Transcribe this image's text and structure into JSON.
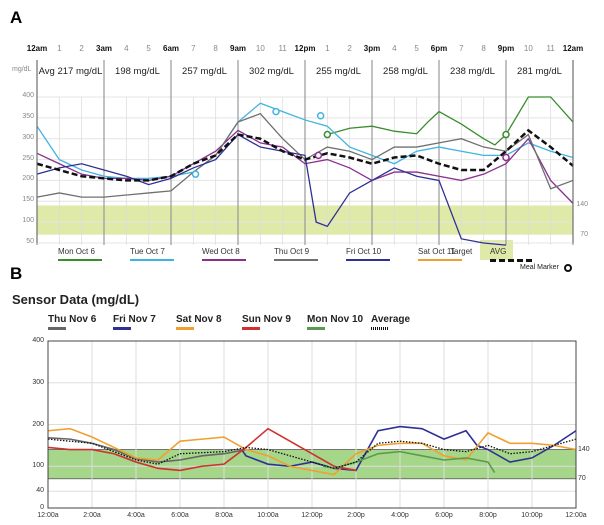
{
  "panels": {
    "a": "A",
    "b": "B"
  },
  "chart_data": [
    {
      "type": "line",
      "hour_labels": [
        "12am",
        "1",
        "2",
        "3am",
        "4",
        "5",
        "6am",
        "7",
        "8",
        "9am",
        "10",
        "11",
        "12pm",
        "1",
        "2",
        "3pm",
        "4",
        "5",
        "6pm",
        "7",
        "8",
        "9pm",
        "10",
        "11",
        "12am"
      ],
      "y_unit": "mg/dL",
      "period_averages": [
        "Avg 217 mg/dL",
        "198 mg/dL",
        "257 mg/dL",
        "302 mg/dL",
        "255 mg/dL",
        "258 mg/dL",
        "238 mg/dL",
        "281 mg/dL"
      ],
      "ylim": [
        50,
        400
      ],
      "yticks": [
        50,
        100,
        150,
        200,
        250,
        300,
        350,
        400
      ],
      "target": {
        "low": 70,
        "high": 140,
        "low_label": "70",
        "high_label": "140",
        "label": "Target",
        "color": "#dfe9a8"
      },
      "meal_marker_label": "Meal Marker",
      "series": [
        {
          "name": "Mon Oct 6",
          "color": "#3a8c2f",
          "dash": false,
          "x": [
            13,
            14,
            15,
            16,
            17,
            17.5,
            18,
            19,
            20,
            20.5,
            21,
            22,
            23,
            24
          ],
          "y": [
            310,
            325,
            330,
            318,
            312,
            340,
            365,
            335,
            300,
            285,
            310,
            400,
            400,
            340
          ]
        },
        {
          "name": "Tue Oct 7",
          "color": "#3fb4e0",
          "dash": false,
          "x": [
            0,
            1,
            2,
            3,
            4,
            5,
            6,
            7,
            8,
            9,
            10,
            11,
            12,
            13,
            14,
            15,
            16,
            17,
            18,
            19,
            20,
            21,
            22,
            23,
            24
          ],
          "y": [
            330,
            250,
            225,
            210,
            205,
            205,
            210,
            220,
            260,
            340,
            385,
            365,
            345,
            330,
            280,
            260,
            240,
            270,
            280,
            270,
            260,
            260,
            290,
            270,
            255
          ]
        },
        {
          "name": "Wed Oct 8",
          "color": "#8b2f8f",
          "dash": false,
          "x": [
            0,
            1,
            2,
            3,
            4,
            5,
            6,
            7,
            8,
            9,
            10,
            11,
            12,
            13,
            14,
            15,
            16,
            17,
            18,
            19,
            20,
            21,
            22,
            23,
            24
          ],
          "y": [
            265,
            240,
            215,
            205,
            205,
            200,
            210,
            240,
            270,
            320,
            290,
            280,
            240,
            250,
            230,
            200,
            220,
            220,
            210,
            200,
            215,
            240,
            300,
            200,
            145
          ]
        },
        {
          "name": "Thu Oct 9",
          "color": "#707070",
          "dash": false,
          "x": [
            0,
            1,
            2,
            3,
            4,
            5,
            6,
            7,
            8,
            9,
            10,
            11,
            12,
            13,
            14,
            15,
            16,
            17,
            18,
            19,
            20,
            21,
            22,
            23,
            24
          ],
          "y": [
            160,
            170,
            160,
            160,
            165,
            170,
            175,
            220,
            260,
            340,
            360,
            300,
            250,
            280,
            270,
            250,
            280,
            280,
            290,
            300,
            280,
            270,
            310,
            180,
            200
          ]
        },
        {
          "name": "Fri Oct 10",
          "color": "#2e3192",
          "dash": false,
          "x": [
            0,
            1,
            2,
            3,
            4,
            5,
            6,
            7,
            8,
            9,
            10,
            11,
            12,
            12.5,
            13,
            14,
            15,
            16,
            17,
            18,
            19,
            20,
            21
          ],
          "y": [
            215,
            230,
            240,
            225,
            210,
            190,
            205,
            230,
            250,
            310,
            280,
            270,
            260,
            100,
            90,
            170,
            200,
            230,
            210,
            200,
            60,
            50,
            45
          ]
        },
        {
          "name": "Sat Oct 11",
          "color": "#f0a030",
          "dash": false,
          "x": [],
          "y": []
        },
        {
          "name": "AVG",
          "color": "#111111",
          "dash": true,
          "x": [
            0,
            1,
            2,
            3,
            4,
            5,
            6,
            7,
            8,
            9,
            10,
            11,
            12,
            13,
            14,
            15,
            16,
            17,
            18,
            19,
            20,
            21,
            22,
            23,
            24
          ],
          "y": [
            240,
            225,
            210,
            205,
            200,
            200,
            210,
            240,
            260,
            310,
            300,
            270,
            250,
            265,
            255,
            240,
            255,
            260,
            240,
            225,
            225,
            270,
            320,
            280,
            235
          ]
        }
      ],
      "meal_markers": [
        {
          "x": 7.1,
          "y": 215,
          "color": "#3fb4e0"
        },
        {
          "x": 10.7,
          "y": 365,
          "color": "#3fb4e0"
        },
        {
          "x": 12.7,
          "y": 355,
          "color": "#3fb4e0"
        },
        {
          "x": 13,
          "y": 310,
          "color": "#3a8c2f"
        },
        {
          "x": 21,
          "y": 310,
          "color": "#3a8c2f"
        },
        {
          "x": 12.6,
          "y": 260,
          "color": "#8b2f8f"
        },
        {
          "x": 21,
          "y": 255,
          "color": "#8b2f8f"
        }
      ]
    },
    {
      "type": "line",
      "title": "Sensor Data (mg/dL)",
      "ylim": [
        0,
        400
      ],
      "yticks": [
        0,
        40,
        100,
        200,
        300,
        400
      ],
      "xlim": [
        0,
        24
      ],
      "xtick_labels": [
        "12:00a",
        "2:00a",
        "4:00a",
        "6:00a",
        "8:00a",
        "10:00a",
        "12:00p",
        "2:00p",
        "4:00p",
        "6:00p",
        "8:00p",
        "10:00p",
        "12:00a"
      ],
      "target": {
        "low": 70,
        "high": 140,
        "low_label": "70",
        "high_label": "140",
        "color": "#a6d68a"
      },
      "series": [
        {
          "name": "Thu Nov 6",
          "color": "#666666",
          "dash": false,
          "x": [
            0,
            1,
            2,
            3,
            4,
            5,
            6,
            7,
            8,
            9
          ],
          "y": [
            168,
            165,
            155,
            140,
            118,
            110,
            115,
            125,
            130,
            140
          ]
        },
        {
          "name": "Fri Nov 7",
          "color": "#2e3192",
          "dash": false,
          "x": [
            8.8,
            9,
            10,
            11,
            12,
            13,
            14,
            15,
            16,
            17,
            18,
            19,
            19.5,
            20,
            21,
            22,
            23,
            24
          ],
          "y": [
            140,
            125,
            105,
            100,
            110,
            95,
            90,
            185,
            195,
            190,
            165,
            185,
            150,
            140,
            110,
            120,
            150,
            185
          ]
        },
        {
          "name": "Sat Nov 8",
          "color": "#f0a030",
          "dash": false,
          "x": [
            0,
            1,
            2,
            3,
            4,
            5,
            6,
            7,
            8,
            9,
            10,
            11,
            12,
            13,
            14,
            15,
            16,
            17,
            18,
            19,
            20,
            21,
            22,
            23,
            24
          ],
          "y": [
            185,
            190,
            170,
            145,
            120,
            115,
            160,
            165,
            170,
            140,
            125,
            100,
            90,
            80,
            130,
            150,
            155,
            155,
            125,
            115,
            180,
            155,
            155,
            150,
            140
          ]
        },
        {
          "name": "Sun Nov 9",
          "color": "#d03030",
          "dash": false,
          "x": [
            0,
            1,
            2,
            3,
            4,
            5,
            6,
            7,
            8,
            9,
            10,
            11,
            12,
            13,
            14
          ],
          "y": [
            145,
            140,
            140,
            130,
            110,
            95,
            90,
            100,
            105,
            145,
            190,
            160,
            130,
            100,
            90
          ]
        },
        {
          "name": "Mon Nov 10",
          "color": "#5a9a50",
          "dash": false,
          "x": [
            12.5,
            13,
            14,
            15,
            16,
            17,
            18,
            19,
            20,
            20.3
          ],
          "y": [
            100,
            95,
            110,
            130,
            135,
            125,
            115,
            120,
            110,
            85
          ]
        },
        {
          "name": "Average",
          "color": "#111111",
          "dash": true,
          "x": [
            0,
            2,
            4,
            5,
            6,
            8,
            9,
            10,
            12,
            13,
            14,
            15,
            16,
            17,
            18,
            19,
            20,
            21,
            22,
            23,
            24
          ],
          "y": [
            165,
            155,
            115,
            105,
            130,
            135,
            145,
            140,
            110,
            95,
            110,
            155,
            160,
            155,
            140,
            135,
            150,
            130,
            135,
            150,
            165
          ]
        }
      ]
    }
  ]
}
